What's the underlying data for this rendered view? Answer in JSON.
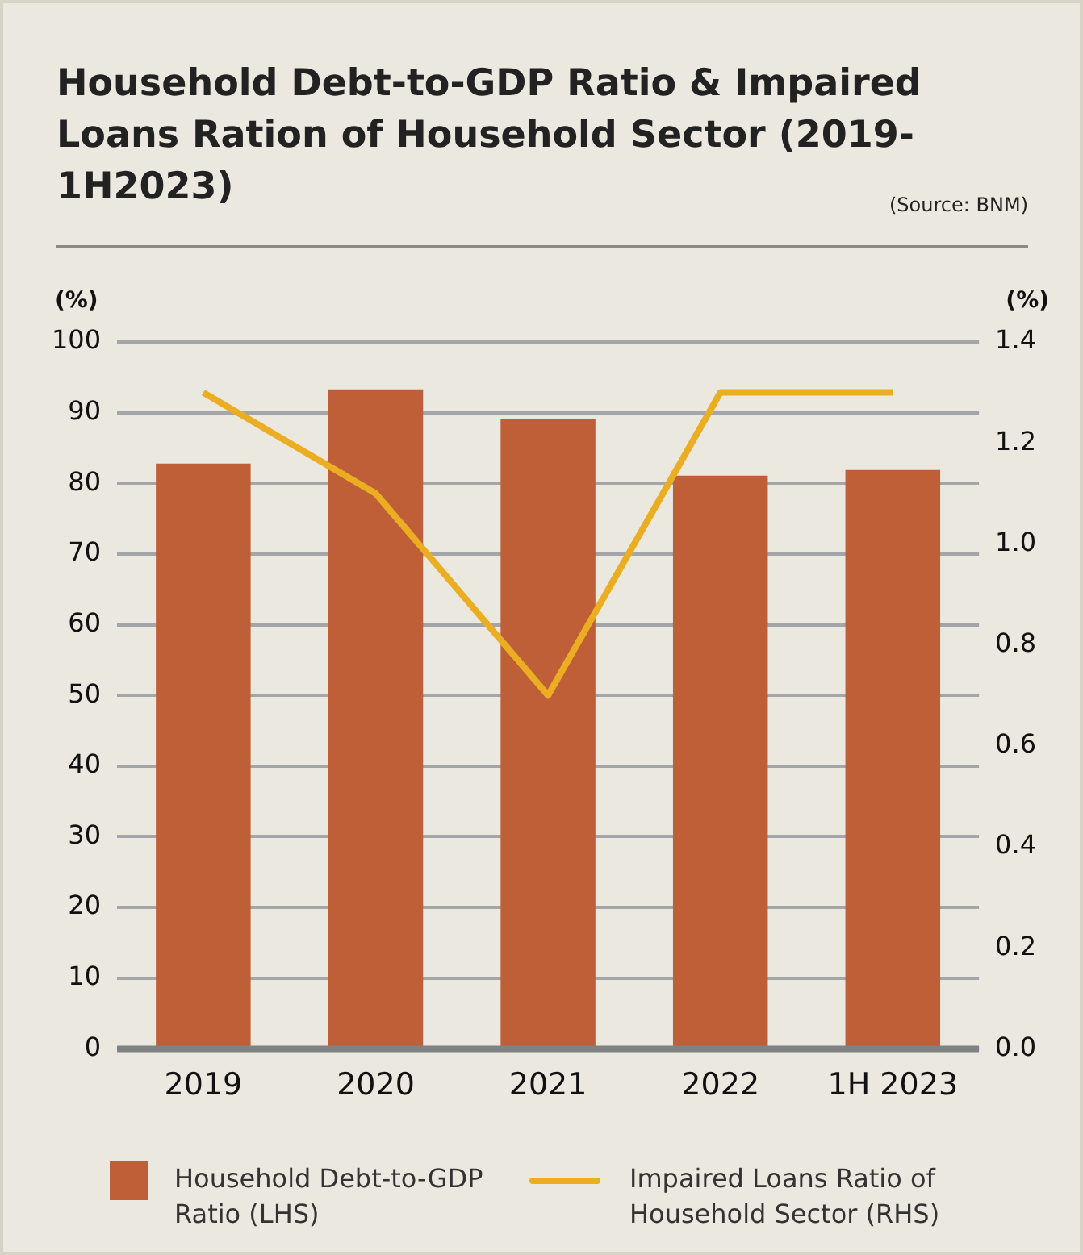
{
  "chart_data": {
    "type": "bar",
    "title": "Household Debt-to-GDP Ratio & Impaired Loans Ration of Household Sector (2019-1H2023)",
    "annotations": [
      "(Source: BNM)"
    ],
    "ylabel": "(%)",
    "y2label": "(%)",
    "categories": [
      "2019",
      "2020",
      "2021",
      "2022",
      "1H 2023"
    ],
    "series": [
      {
        "name": "Household Debt-to-GDP Ratio (LHS)",
        "color": "#bf5f38",
        "values": [
          82.8,
          93.3,
          89.1,
          81.1,
          81.9
        ]
      },
      {
        "name": "Impaired Loans Ratio of Household Sector (RHS)",
        "type": "line",
        "axis": "y2",
        "color": "#ebae22",
        "values": [
          1.3,
          1.1,
          0.7,
          1.3,
          1.3
        ]
      }
    ],
    "ylim": [
      0,
      100
    ],
    "yticks": [
      0,
      10,
      20,
      30,
      40,
      50,
      60,
      70,
      80,
      90,
      100
    ],
    "y2lim": [
      0,
      1.4
    ],
    "y2ticks": [
      {
        "value": 0,
        "label": "0.0"
      },
      {
        "value": 0.2,
        "label": "0.2"
      },
      {
        "value": 0.4,
        "label": "0.4"
      },
      {
        "value": 0.6,
        "label": "0.6"
      },
      {
        "value": 0.8,
        "label": "0.8"
      },
      {
        "value": 1,
        "label": "1.0"
      },
      {
        "value": 1.2,
        "label": "1.2"
      },
      {
        "value": 1.4,
        "label": "1.4"
      }
    ],
    "grid": "y",
    "legend": "bottom",
    "marker": "none"
  }
}
